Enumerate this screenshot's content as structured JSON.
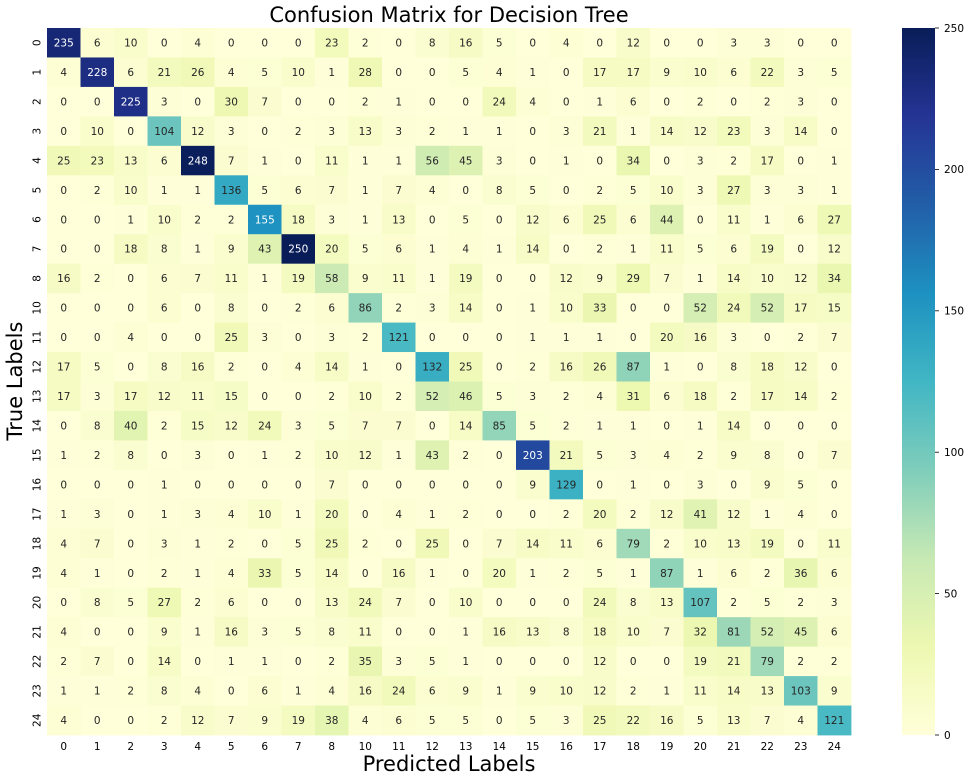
{
  "chart_data": {
    "type": "heatmap",
    "title": "Confusion Matrix for Decision Tree",
    "xlabel": "Predicted Labels",
    "ylabel": "True Labels",
    "x_labels": [
      "0",
      "1",
      "2",
      "3",
      "4",
      "5",
      "6",
      "7",
      "8",
      "10",
      "11",
      "12",
      "13",
      "14",
      "15",
      "16",
      "17",
      "18",
      "19",
      "20",
      "21",
      "22",
      "23",
      "24"
    ],
    "y_labels": [
      "0",
      "1",
      "2",
      "3",
      "4",
      "5",
      "6",
      "7",
      "8",
      "10",
      "11",
      "12",
      "13",
      "14",
      "15",
      "16",
      "17",
      "18",
      "19",
      "20",
      "21",
      "22",
      "23",
      "24"
    ],
    "values": [
      [
        235,
        6,
        10,
        0,
        4,
        0,
        0,
        0,
        23,
        2,
        0,
        8,
        16,
        5,
        0,
        4,
        0,
        12,
        0,
        0,
        3,
        3,
        0,
        0
      ],
      [
        4,
        228,
        6,
        21,
        26,
        4,
        5,
        10,
        1,
        28,
        0,
        0,
        5,
        4,
        1,
        0,
        17,
        17,
        9,
        10,
        6,
        22,
        3,
        5
      ],
      [
        0,
        0,
        225,
        3,
        0,
        30,
        7,
        0,
        0,
        2,
        1,
        0,
        0,
        24,
        4,
        0,
        1,
        6,
        0,
        2,
        0,
        2,
        3,
        0
      ],
      [
        0,
        10,
        0,
        104,
        12,
        3,
        0,
        2,
        3,
        13,
        3,
        2,
        1,
        1,
        0,
        3,
        21,
        1,
        14,
        12,
        23,
        3,
        14,
        0
      ],
      [
        25,
        23,
        13,
        6,
        248,
        7,
        1,
        0,
        11,
        1,
        1,
        56,
        45,
        3,
        0,
        1,
        0,
        34,
        0,
        3,
        2,
        17,
        0,
        1
      ],
      [
        0,
        2,
        10,
        1,
        1,
        136,
        5,
        6,
        7,
        1,
        7,
        4,
        0,
        8,
        5,
        0,
        2,
        5,
        10,
        3,
        27,
        3,
        3,
        1
      ],
      [
        0,
        0,
        1,
        10,
        2,
        2,
        155,
        18,
        3,
        1,
        13,
        0,
        5,
        0,
        12,
        6,
        25,
        6,
        44,
        0,
        11,
        1,
        6,
        27
      ],
      [
        0,
        0,
        18,
        8,
        1,
        9,
        43,
        250,
        20,
        5,
        6,
        1,
        4,
        1,
        14,
        0,
        2,
        1,
        11,
        5,
        6,
        19,
        0,
        12
      ],
      [
        16,
        2,
        0,
        6,
        7,
        11,
        1,
        19,
        58,
        9,
        11,
        1,
        19,
        0,
        0,
        12,
        9,
        29,
        7,
        1,
        14,
        10,
        12,
        34
      ],
      [
        0,
        0,
        0,
        6,
        0,
        8,
        0,
        2,
        6,
        86,
        2,
        3,
        14,
        0,
        1,
        10,
        33,
        0,
        0,
        52,
        24,
        52,
        17,
        15
      ],
      [
        0,
        0,
        4,
        0,
        0,
        25,
        3,
        0,
        3,
        2,
        121,
        0,
        0,
        0,
        1,
        1,
        1,
        0,
        20,
        16,
        3,
        0,
        2,
        7
      ],
      [
        17,
        5,
        0,
        8,
        16,
        2,
        0,
        4,
        14,
        1,
        0,
        132,
        25,
        0,
        2,
        16,
        26,
        87,
        1,
        0,
        8,
        18,
        12,
        0
      ],
      [
        17,
        3,
        17,
        12,
        11,
        15,
        0,
        0,
        2,
        10,
        2,
        52,
        46,
        5,
        3,
        2,
        4,
        31,
        6,
        18,
        2,
        17,
        14,
        2
      ],
      [
        0,
        8,
        40,
        2,
        15,
        12,
        24,
        3,
        5,
        7,
        7,
        0,
        14,
        85,
        5,
        2,
        1,
        1,
        0,
        1,
        14,
        0,
        0,
        0
      ],
      [
        1,
        2,
        8,
        0,
        3,
        0,
        1,
        2,
        10,
        12,
        1,
        43,
        2,
        0,
        203,
        21,
        5,
        3,
        4,
        2,
        9,
        8,
        0,
        7
      ],
      [
        0,
        0,
        0,
        1,
        0,
        0,
        0,
        0,
        7,
        0,
        0,
        0,
        0,
        0,
        9,
        129,
        0,
        1,
        0,
        3,
        0,
        9,
        5,
        0
      ],
      [
        1,
        3,
        0,
        1,
        3,
        4,
        10,
        1,
        20,
        0,
        4,
        1,
        2,
        0,
        0,
        2,
        20,
        2,
        12,
        41,
        12,
        1,
        4,
        0
      ],
      [
        4,
        7,
        0,
        3,
        1,
        2,
        0,
        5,
        25,
        2,
        0,
        25,
        0,
        7,
        14,
        11,
        6,
        79,
        2,
        10,
        13,
        19,
        0,
        11
      ],
      [
        4,
        1,
        0,
        2,
        1,
        4,
        33,
        5,
        14,
        0,
        16,
        1,
        0,
        20,
        1,
        2,
        5,
        1,
        87,
        1,
        6,
        2,
        36,
        6
      ],
      [
        0,
        8,
        5,
        27,
        2,
        6,
        0,
        0,
        13,
        24,
        7,
        0,
        10,
        0,
        0,
        0,
        24,
        8,
        13,
        107,
        2,
        5,
        2,
        3
      ],
      [
        4,
        0,
        0,
        9,
        1,
        16,
        3,
        5,
        8,
        11,
        0,
        0,
        1,
        16,
        13,
        8,
        18,
        10,
        7,
        32,
        81,
        52,
        45,
        6
      ],
      [
        2,
        7,
        0,
        14,
        0,
        1,
        1,
        0,
        2,
        35,
        3,
        5,
        1,
        0,
        0,
        0,
        12,
        0,
        0,
        19,
        21,
        79,
        2,
        2
      ],
      [
        1,
        1,
        2,
        8,
        4,
        0,
        6,
        1,
        4,
        16,
        24,
        6,
        9,
        1,
        9,
        10,
        12,
        2,
        1,
        11,
        14,
        13,
        103,
        9
      ],
      [
        4,
        0,
        0,
        2,
        12,
        7,
        9,
        19,
        38,
        4,
        6,
        5,
        5,
        0,
        5,
        3,
        25,
        22,
        16,
        5,
        13,
        7,
        4,
        121
      ]
    ],
    "colorbar": {
      "min": 0,
      "max": 250,
      "ticks": [
        0,
        50,
        100,
        150,
        200,
        250
      ],
      "colormap": "YlGnBu"
    },
    "annotation_threshold": 150
  }
}
